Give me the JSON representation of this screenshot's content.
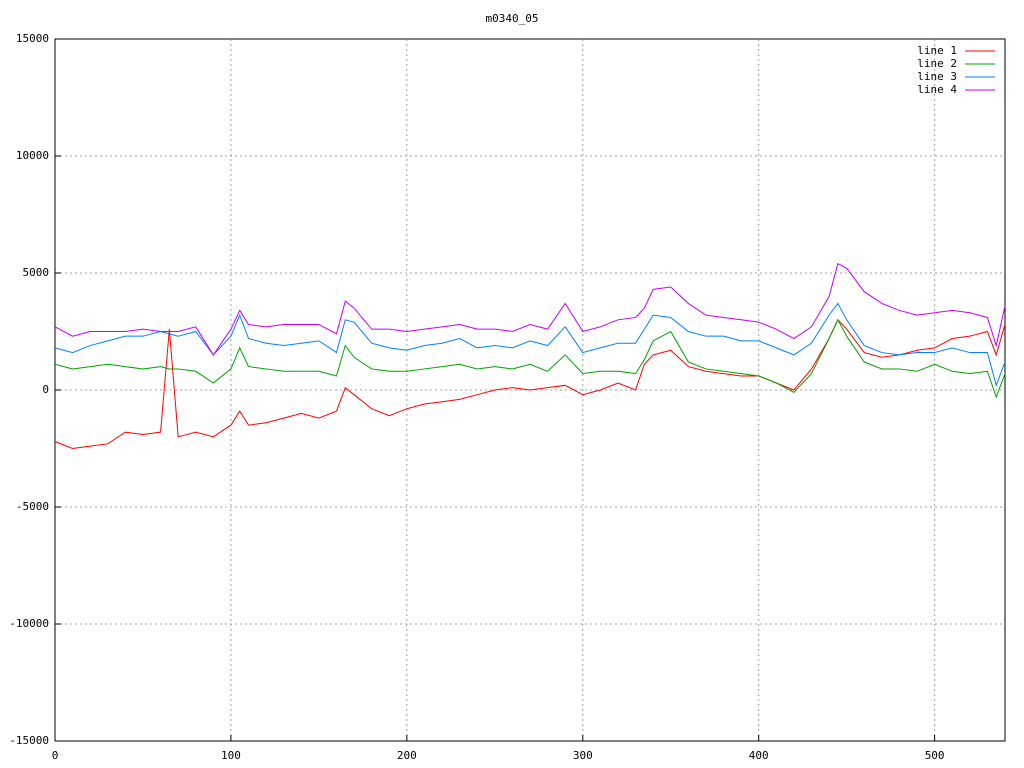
{
  "chart_data": {
    "type": "line",
    "title": "m0340_05",
    "x": [
      0,
      10,
      20,
      30,
      40,
      50,
      60,
      65,
      70,
      80,
      90,
      100,
      105,
      110,
      120,
      130,
      140,
      150,
      160,
      165,
      170,
      180,
      190,
      200,
      210,
      220,
      230,
      240,
      250,
      260,
      270,
      280,
      290,
      300,
      310,
      320,
      330,
      335,
      340,
      350,
      360,
      370,
      380,
      390,
      400,
      410,
      420,
      430,
      440,
      445,
      450,
      460,
      470,
      480,
      490,
      500,
      510,
      520,
      530,
      535,
      540
    ],
    "series": [
      {
        "name": "line 1",
        "color": "#ff0000",
        "values": [
          -2200,
          -2500,
          -2400,
          -2300,
          -1800,
          -1900,
          -1800,
          2600,
          -2000,
          -1800,
          -2000,
          -1500,
          -900,
          -1500,
          -1400,
          -1200,
          -1000,
          -1200,
          -900,
          100,
          -200,
          -800,
          -1100,
          -800,
          -600,
          -500,
          -400,
          -200,
          0,
          100,
          0,
          100,
          200,
          -200,
          0,
          300,
          0,
          1100,
          1500,
          1700,
          1000,
          800,
          700,
          600,
          600,
          300,
          0,
          900,
          2200,
          3000,
          2600,
          1600,
          1400,
          1500,
          1700,
          1800,
          2200,
          2300,
          2500,
          1500,
          2800
        ]
      },
      {
        "name": "line 2",
        "color": "#00a000",
        "values": [
          1100,
          900,
          1000,
          1100,
          1000,
          900,
          1000,
          900,
          900,
          800,
          300,
          900,
          1800,
          1000,
          900,
          800,
          800,
          800,
          600,
          1900,
          1400,
          900,
          800,
          800,
          900,
          1000,
          1100,
          900,
          1000,
          900,
          1100,
          800,
          1500,
          700,
          800,
          800,
          700,
          1300,
          2100,
          2500,
          1200,
          900,
          800,
          700,
          600,
          300,
          -100,
          700,
          2200,
          3000,
          2300,
          1200,
          900,
          900,
          800,
          1100,
          800,
          700,
          800,
          -300,
          700
        ]
      },
      {
        "name": "line 3",
        "color": "#0080ff",
        "values": [
          1800,
          1600,
          1900,
          2100,
          2300,
          2300,
          2500,
          2400,
          2300,
          2500,
          1500,
          2300,
          3200,
          2200,
          2000,
          1900,
          2000,
          2100,
          1600,
          3000,
          2900,
          2000,
          1800,
          1700,
          1900,
          2000,
          2200,
          1800,
          1900,
          1800,
          2100,
          1900,
          2700,
          1600,
          1800,
          2000,
          2000,
          2600,
          3200,
          3100,
          2500,
          2300,
          2300,
          2100,
          2100,
          1800,
          1500,
          2000,
          3200,
          3700,
          3000,
          1900,
          1600,
          1500,
          1600,
          1600,
          1800,
          1600,
          1600,
          200,
          1200
        ]
      },
      {
        "name": "line 4",
        "color": "#c000ff",
        "values": [
          2700,
          2300,
          2500,
          2500,
          2500,
          2600,
          2500,
          2500,
          2500,
          2700,
          1500,
          2600,
          3400,
          2800,
          2700,
          2800,
          2800,
          2800,
          2400,
          3800,
          3500,
          2600,
          2600,
          2500,
          2600,
          2700,
          2800,
          2600,
          2600,
          2500,
          2800,
          2600,
          3700,
          2500,
          2700,
          3000,
          3100,
          3500,
          4300,
          4400,
          3700,
          3200,
          3100,
          3000,
          2900,
          2600,
          2200,
          2700,
          4000,
          5400,
          5200,
          4200,
          3700,
          3400,
          3200,
          3300,
          3400,
          3300,
          3100,
          1900,
          3600
        ]
      }
    ],
    "xlim": [
      0,
      540
    ],
    "ylim": [
      -15000,
      15000
    ],
    "xticks": [
      0,
      100,
      200,
      300,
      400,
      500
    ],
    "yticks": [
      -15000,
      -10000,
      -5000,
      0,
      5000,
      10000,
      15000
    ],
    "grid": true,
    "legend": "top-right"
  }
}
